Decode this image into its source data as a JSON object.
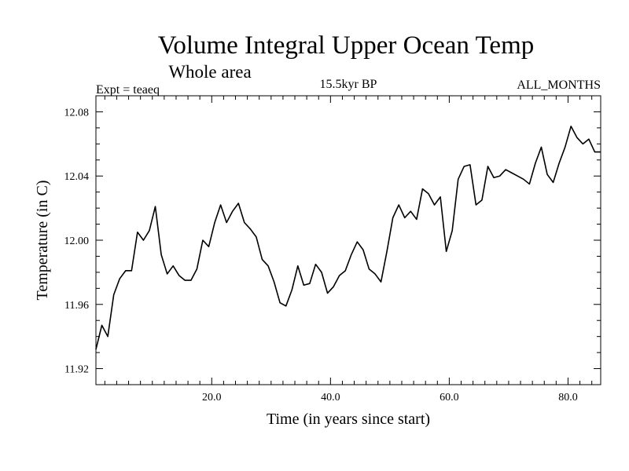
{
  "chart_data": {
    "type": "line",
    "title": "Volume Integral Upper Ocean Temp",
    "subtitle": "Whole area",
    "experiment_label": "Expt = teaeq",
    "period_label": "15.5kyr BP",
    "months_label": "ALL_MONTHS",
    "xlabel": "Time (in years since start)",
    "ylabel": "Temperature (in C)",
    "xlim": [
      0.5,
      85.5
    ],
    "ylim": [
      11.91,
      12.09
    ],
    "x_ticks": [
      20,
      40,
      60,
      80
    ],
    "x_tick_labels": [
      "20.0",
      "40.0",
      "60.0",
      "80.0"
    ],
    "y_ticks": [
      11.92,
      11.96,
      12.0,
      12.04,
      12.08
    ],
    "y_tick_labels": [
      "11.92",
      "11.96",
      "12.00",
      "12.04",
      "12.08"
    ],
    "grid": false,
    "series": [
      {
        "name": "Temperature",
        "color": "#000000",
        "x": [
          0.5,
          1.5,
          2.5,
          3.5,
          4.5,
          5.5,
          6.5,
          7.5,
          8.5,
          9.5,
          10.5,
          11.5,
          12.5,
          13.5,
          14.5,
          15.5,
          16.5,
          17.5,
          18.5,
          19.5,
          20.5,
          21.5,
          22.5,
          23.5,
          24.5,
          25.5,
          26.5,
          27.5,
          28.5,
          29.5,
          30.5,
          31.5,
          32.5,
          33.5,
          34.5,
          35.5,
          36.5,
          37.5,
          38.5,
          39.5,
          40.5,
          41.5,
          42.5,
          43.5,
          44.5,
          45.5,
          46.5,
          47.5,
          48.5,
          49.5,
          50.5,
          51.5,
          52.5,
          53.5,
          54.5,
          55.5,
          56.5,
          57.5,
          58.5,
          59.5,
          60.5,
          61.5,
          62.5,
          63.5,
          64.5,
          65.5,
          66.5,
          67.5,
          68.5,
          69.5,
          70.5,
          71.5,
          72.5,
          73.5,
          74.5,
          75.5,
          76.5,
          77.5,
          78.5,
          79.5,
          80.5,
          81.5,
          82.5,
          83.5,
          84.5,
          85.5
        ],
        "values": [
          11.932,
          11.947,
          11.94,
          11.966,
          11.976,
          11.981,
          11.981,
          12.005,
          12.0,
          12.006,
          12.021,
          11.991,
          11.979,
          11.984,
          11.978,
          11.975,
          11.975,
          11.982,
          12.0,
          11.996,
          12.011,
          12.022,
          12.011,
          12.018,
          12.023,
          12.011,
          12.007,
          12.002,
          11.988,
          11.984,
          11.974,
          11.961,
          11.959,
          11.969,
          11.984,
          11.972,
          11.973,
          11.985,
          11.98,
          11.967,
          11.971,
          11.978,
          11.981,
          11.991,
          11.999,
          11.994,
          11.982,
          11.979,
          11.974,
          11.993,
          12.014,
          12.022,
          12.014,
          12.018,
          12.013,
          12.032,
          12.029,
          12.022,
          12.027,
          11.993,
          12.006,
          12.038,
          12.046,
          12.047,
          12.022,
          12.025,
          12.046,
          12.039,
          12.04,
          12.044,
          12.042,
          12.04,
          12.038,
          12.035,
          12.048,
          12.058,
          12.041,
          12.036,
          12.048,
          12.058,
          12.071,
          12.064,
          12.06,
          12.063,
          12.055,
          12.055
        ]
      }
    ]
  }
}
